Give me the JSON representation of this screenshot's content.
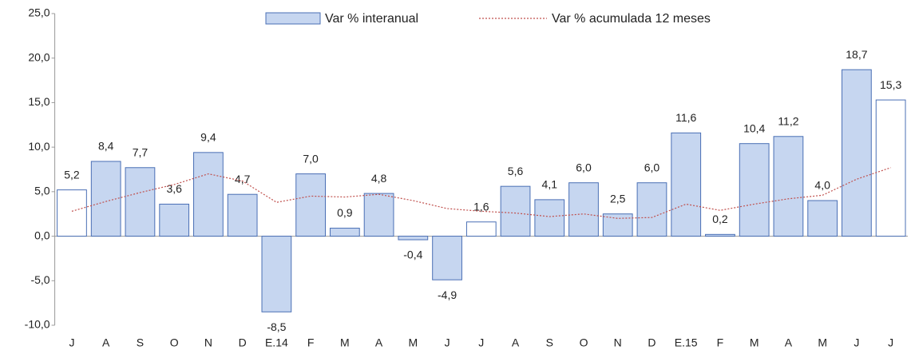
{
  "chart_data": {
    "type": "bar",
    "categories": [
      "J",
      "A",
      "S",
      "O",
      "N",
      "D",
      "E.14",
      "F",
      "M",
      "A",
      "M",
      "J",
      "J",
      "A",
      "S",
      "O",
      "N",
      "D",
      "E.15",
      "F",
      "M",
      "A",
      "M",
      "J",
      "J"
    ],
    "series": [
      {
        "name": "Var % interanual",
        "type": "bar",
        "color": "#c6d6f0",
        "colors": [
          "#ffffff",
          "#c6d6f0",
          "#c6d6f0",
          "#c6d6f0",
          "#c6d6f0",
          "#c6d6f0",
          "#c6d6f0",
          "#c6d6f0",
          "#c6d6f0",
          "#c6d6f0",
          "#c6d6f0",
          "#c6d6f0",
          "#ffffff",
          "#c6d6f0",
          "#c6d6f0",
          "#c6d6f0",
          "#c6d6f0",
          "#c6d6f0",
          "#c6d6f0",
          "#c6d6f0",
          "#c6d6f0",
          "#c6d6f0",
          "#c6d6f0",
          "#c6d6f0",
          "#ffffff"
        ],
        "values": [
          5.2,
          8.4,
          7.7,
          3.6,
          9.4,
          4.7,
          -8.5,
          7.0,
          0.9,
          4.8,
          -0.4,
          -4.9,
          1.6,
          5.6,
          4.1,
          6.0,
          2.5,
          6.0,
          11.6,
          0.2,
          10.4,
          11.2,
          4.0,
          18.7,
          15.3
        ],
        "value_labels": [
          "5,2",
          "8,4",
          "7,7",
          "3,6",
          "9,4",
          "4,7",
          "-8,5",
          "7,0",
          "0,9",
          "4,8",
          "-0,4",
          "-4,9",
          "1,6",
          "5,6",
          "4,1",
          "6,0",
          "2,5",
          "6,0",
          "11,6",
          "0,2",
          "10,4",
          "11,2",
          "4,0",
          "18,7",
          "15,3"
        ]
      },
      {
        "name": "Var % acumulada 12 meses",
        "type": "line",
        "color": "#c0504d",
        "values": [
          2.8,
          3.9,
          4.9,
          5.8,
          7.0,
          6.2,
          3.8,
          4.5,
          4.4,
          4.7,
          4.0,
          3.1,
          2.8,
          2.6,
          2.2,
          2.5,
          2.0,
          2.1,
          3.6,
          2.9,
          3.6,
          4.2,
          4.6,
          6.4,
          7.7
        ]
      }
    ],
    "ylim": [
      -10,
      25
    ],
    "yticks": [
      {
        "value": -10,
        "label": "-10,0"
      },
      {
        "value": -5,
        "label": "-5,0"
      },
      {
        "value": 0,
        "label": "0,0"
      },
      {
        "value": 5,
        "label": "5,0"
      },
      {
        "value": 10,
        "label": "10,0"
      },
      {
        "value": 15,
        "label": "15,0"
      },
      {
        "value": 20,
        "label": "20,0"
      },
      {
        "value": 25,
        "label": "25,0"
      }
    ]
  }
}
